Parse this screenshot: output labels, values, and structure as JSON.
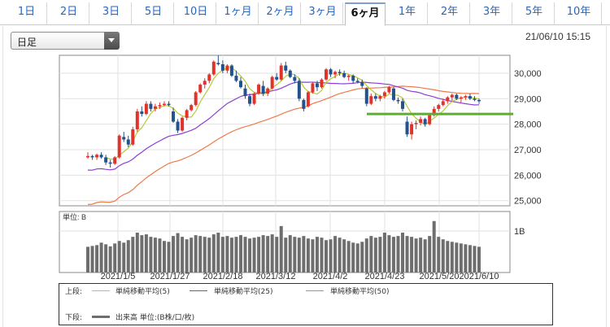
{
  "tabs": [
    {
      "label": "1日",
      "active": false
    },
    {
      "label": "2日",
      "active": false
    },
    {
      "label": "3日",
      "active": false
    },
    {
      "label": "5日",
      "active": false
    },
    {
      "label": "10日",
      "active": false
    },
    {
      "label": "1ヶ月",
      "active": false
    },
    {
      "label": "2ヶ月",
      "active": false
    },
    {
      "label": "3ヶ月",
      "active": false
    },
    {
      "label": "6ヶ月",
      "active": true
    },
    {
      "label": "1年",
      "active": false
    },
    {
      "label": "2年",
      "active": false
    },
    {
      "label": "3年",
      "active": false
    },
    {
      "label": "5年",
      "active": false
    },
    {
      "label": "10年",
      "active": false
    }
  ],
  "period_select": {
    "value": "日足"
  },
  "timestamp": "21/06/10 15:15",
  "price_axis": {
    "ticks": [
      "30,000",
      "29,000",
      "28,000",
      "27,000",
      "26,000",
      "25,000"
    ]
  },
  "volume_axis": {
    "unit_label": "単位: B",
    "tick": "1B"
  },
  "x_axis": {
    "ticks": [
      "2021/1/5",
      "2021/1/27",
      "2021/2/18",
      "2021/3/12",
      "2021/4/2",
      "2021/4/23",
      "2021/5/20",
      "2021/6/10"
    ]
  },
  "legend": {
    "upper_label": "上段:",
    "lower_label": "下段:",
    "ma5": "単純移動平均(5)",
    "ma25": "単純移動平均(25)",
    "ma50": "単純移動平均(50)",
    "volume": "出来高 単位:(B株/口/枚)"
  },
  "colors": {
    "up": "#e0332b",
    "down": "#23528e",
    "ma5": "#b5cb3a",
    "ma25": "#8b3fd6",
    "ma50": "#ee7a4a",
    "support": "#5cae2e",
    "volume": "#6e6e6e"
  },
  "chart_data": {
    "type": "candlestick",
    "support_level": 28400,
    "price_range": [
      24800,
      30700
    ],
    "candles": [
      [
        26700,
        26900,
        26650,
        26750
      ],
      [
        26750,
        26800,
        26600,
        26700
      ],
      [
        26700,
        26850,
        26600,
        26800
      ],
      [
        26800,
        26900,
        26650,
        26700
      ],
      [
        26700,
        26800,
        26400,
        26500
      ],
      [
        26500,
        26600,
        26300,
        26450
      ],
      [
        26450,
        26750,
        26400,
        26700
      ],
      [
        26700,
        27600,
        26650,
        27550
      ],
      [
        27500,
        27700,
        27300,
        27400
      ],
      [
        27400,
        27550,
        27100,
        27200
      ],
      [
        27200,
        27900,
        27150,
        27800
      ],
      [
        27800,
        28600,
        27700,
        28500
      ],
      [
        28500,
        28700,
        28300,
        28400
      ],
      [
        28400,
        28900,
        28350,
        28800
      ],
      [
        28800,
        28900,
        28500,
        28600
      ],
      [
        28600,
        28800,
        28500,
        28700
      ],
      [
        28700,
        28850,
        28600,
        28750
      ],
      [
        28750,
        28900,
        28700,
        28800
      ],
      [
        28800,
        28900,
        28700,
        28750
      ],
      [
        28500,
        28650,
        28050,
        28100
      ],
      [
        28100,
        28200,
        27650,
        27750
      ],
      [
        27750,
        28300,
        27700,
        28250
      ],
      [
        28250,
        28600,
        28150,
        28550
      ],
      [
        28550,
        28800,
        28500,
        28750
      ],
      [
        28750,
        29300,
        28700,
        29250
      ],
      [
        29250,
        29600,
        29200,
        29550
      ],
      [
        29550,
        29800,
        29400,
        29700
      ],
      [
        29700,
        30000,
        29600,
        29950
      ],
      [
        29950,
        30500,
        29900,
        30450
      ],
      [
        30400,
        30700,
        30300,
        30350
      ],
      [
        30350,
        30500,
        30000,
        30100
      ],
      [
        30100,
        30350,
        30000,
        30300
      ],
      [
        30300,
        30350,
        29850,
        29900
      ],
      [
        29900,
        30100,
        29650,
        29700
      ],
      [
        29700,
        29850,
        29400,
        29450
      ],
      [
        29400,
        29550,
        29000,
        29100
      ],
      [
        29100,
        29200,
        28700,
        28800
      ],
      [
        28800,
        29250,
        28750,
        29200
      ],
      [
        29200,
        29600,
        29150,
        29550
      ],
      [
        29500,
        29700,
        29100,
        29200
      ],
      [
        29200,
        29450,
        29100,
        29400
      ],
      [
        29400,
        29900,
        29350,
        29850
      ],
      [
        29850,
        30000,
        29700,
        29750
      ],
      [
        29750,
        30400,
        29700,
        30300
      ],
      [
        30300,
        30450,
        30000,
        30100
      ],
      [
        30100,
        30150,
        29800,
        29850
      ],
      [
        29850,
        29950,
        29600,
        29700
      ],
      [
        29700,
        29800,
        28900,
        29000
      ],
      [
        28950,
        29000,
        28500,
        28600
      ],
      [
        28700,
        29300,
        28650,
        29250
      ],
      [
        29250,
        29650,
        29200,
        29600
      ],
      [
        29600,
        29700,
        29300,
        29450
      ],
      [
        29450,
        29800,
        29400,
        29750
      ],
      [
        29750,
        30200,
        29700,
        30150
      ],
      [
        30150,
        30200,
        29850,
        29950
      ],
      [
        29950,
        30100,
        29800,
        30050
      ],
      [
        30050,
        30150,
        29900,
        30000
      ],
      [
        30000,
        30100,
        29800,
        29850
      ],
      [
        29850,
        29950,
        29700,
        29900
      ],
      [
        29900,
        29950,
        29600,
        29700
      ],
      [
        29700,
        29800,
        29600,
        29650
      ],
      [
        29650,
        29750,
        29400,
        29500
      ],
      [
        29400,
        29450,
        28700,
        28800
      ],
      [
        28800,
        29200,
        28750,
        29100
      ],
      [
        29100,
        29200,
        28900,
        29000
      ],
      [
        29000,
        29150,
        28900,
        29100
      ],
      [
        29100,
        29300,
        29000,
        29250
      ],
      [
        29250,
        29500,
        29200,
        29450
      ],
      [
        29400,
        29450,
        28900,
        28950
      ],
      [
        28950,
        29050,
        28800,
        28900
      ],
      [
        28900,
        29000,
        28500,
        28600
      ],
      [
        28100,
        28300,
        27500,
        27600
      ],
      [
        27600,
        28100,
        27400,
        28000
      ],
      [
        28000,
        28150,
        27800,
        28050
      ],
      [
        28050,
        28300,
        27950,
        28200
      ],
      [
        28200,
        28250,
        27900,
        28000
      ],
      [
        28000,
        28400,
        27950,
        28350
      ],
      [
        28350,
        28700,
        28300,
        28600
      ],
      [
        28600,
        28800,
        28500,
        28750
      ],
      [
        28750,
        29000,
        28700,
        28900
      ],
      [
        28900,
        29100,
        28800,
        29050
      ],
      [
        29050,
        29200,
        28900,
        29150
      ],
      [
        29150,
        29200,
        28950,
        29000
      ],
      [
        29000,
        29100,
        28850,
        29050
      ],
      [
        29050,
        29150,
        28950,
        29100
      ],
      [
        29100,
        29200,
        28950,
        29000
      ],
      [
        29000,
        29100,
        28900,
        28950
      ],
      [
        28950,
        29000,
        28800,
        28900
      ]
    ],
    "volume": [
      0.62,
      0.64,
      0.66,
      0.72,
      0.68,
      0.63,
      0.7,
      0.76,
      0.72,
      0.78,
      0.86,
      0.96,
      0.9,
      0.92,
      0.86,
      0.84,
      0.82,
      0.76,
      0.74,
      0.88,
      0.95,
      0.86,
      0.8,
      0.84,
      0.9,
      0.88,
      0.86,
      0.84,
      0.92,
      0.96,
      0.86,
      0.88,
      0.84,
      0.86,
      0.9,
      0.86,
      0.82,
      0.84,
      0.86,
      0.9,
      0.88,
      0.92,
      0.86,
      1.12,
      0.84,
      0.9,
      0.86,
      0.84,
      0.88,
      0.82,
      0.8,
      0.86,
      0.84,
      0.78,
      0.8,
      0.88,
      0.84,
      0.8,
      0.76,
      0.72,
      0.7,
      0.74,
      0.82,
      0.88,
      0.84,
      0.86,
      0.96,
      0.9,
      0.86,
      0.88,
      0.96,
      0.88,
      0.86,
      0.82,
      0.84,
      0.8,
      0.88,
      1.24,
      0.86,
      0.8,
      0.76,
      0.74,
      0.72,
      0.7,
      0.68,
      0.66,
      0.64,
      0.62
    ]
  }
}
